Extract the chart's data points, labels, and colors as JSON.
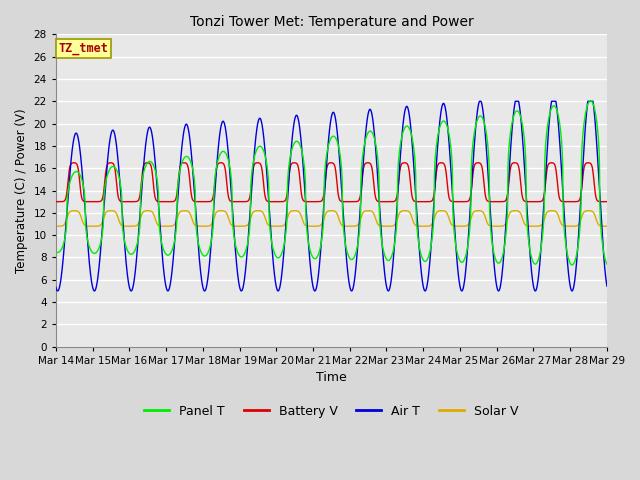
{
  "title": "Tonzi Tower Met: Temperature and Power",
  "xlabel": "Time",
  "ylabel": "Temperature (C) / Power (V)",
  "ylim": [
    0,
    28
  ],
  "yticks": [
    0,
    2,
    4,
    6,
    8,
    10,
    12,
    14,
    16,
    18,
    20,
    22,
    24,
    26,
    28
  ],
  "xtick_labels": [
    "Mar 14",
    "Mar 15",
    "Mar 16",
    "Mar 17",
    "Mar 18",
    "Mar 19",
    "Mar 20",
    "Mar 21",
    "Mar 22",
    "Mar 23",
    "Mar 24",
    "Mar 25",
    "Mar 26",
    "Mar 27",
    "Mar 28",
    "Mar 29"
  ],
  "annotation_text": "TZ_tmet",
  "annotation_color": "#aa0000",
  "annotation_bg": "#ffff99",
  "annotation_border": "#999900",
  "legend_entries": [
    "Panel T",
    "Battery V",
    "Air T",
    "Solar V"
  ],
  "legend_colors": [
    "#00ee00",
    "#dd0000",
    "#0000dd",
    "#ddaa00"
  ],
  "line_colors": {
    "panel_t": "#00ee00",
    "battery_v": "#dd0000",
    "air_t": "#0000dd",
    "solar_v": "#ddaa00"
  },
  "background_color": "#d8d8d8",
  "plot_bg": "#e8e8e8",
  "grid_color": "#ffffff",
  "num_days": 15,
  "points_per_day": 144
}
